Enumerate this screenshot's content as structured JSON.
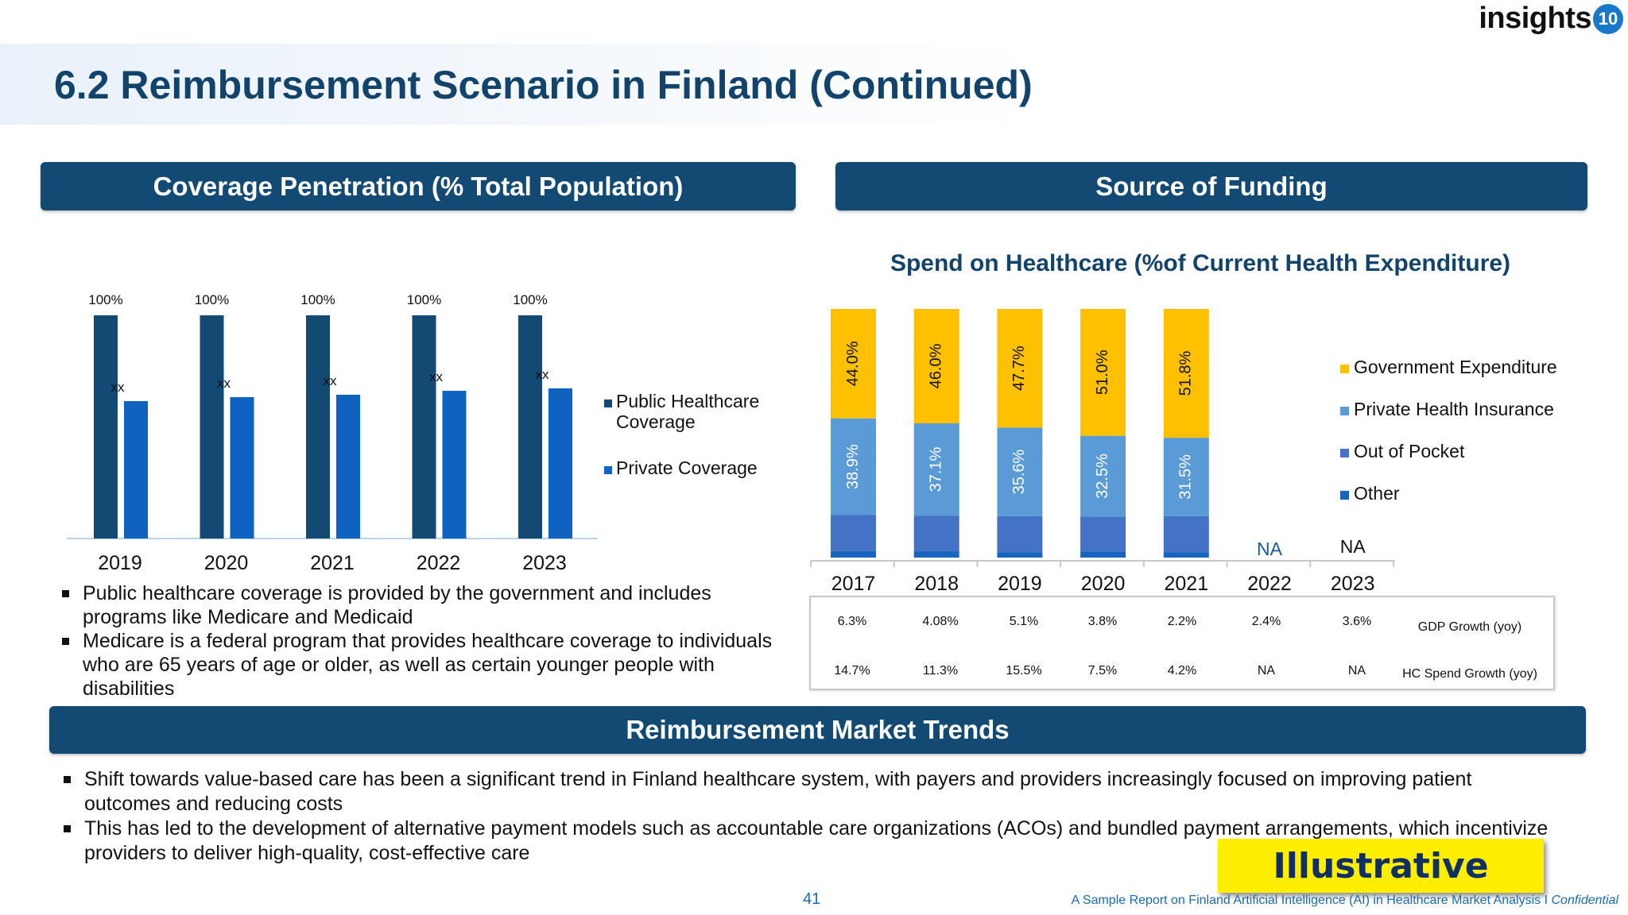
{
  "logo": {
    "text": "insights",
    "badge": "10"
  },
  "page_title": "6.2 Reimbursement Scenario in Finland (Continued)",
  "sections": {
    "coverage": "Coverage Penetration (% Total Population)",
    "funding": "Source of Funding",
    "trends": "Reimbursement Market Trends"
  },
  "colors": {
    "public": "#124a74",
    "private": "#0f63c0",
    "gov": "#ffc000",
    "phi": "#5b9bd5",
    "oop": "#4472c4",
    "other": "#1565c0",
    "banner": "#124a74"
  },
  "chart_data": [
    {
      "type": "bar",
      "categories": [
        "2019",
        "2020",
        "2021",
        "2022",
        "2023"
      ],
      "series": [
        {
          "name": "Public Healthcare Coverage",
          "values": [
            100,
            100,
            100,
            100,
            100
          ],
          "labels": [
            "100%",
            "100%",
            "100%",
            "100%",
            "100%"
          ]
        },
        {
          "name": "Private Coverage",
          "values": [
            null,
            null,
            null,
            null,
            null
          ],
          "labels": [
            "xx",
            "xx",
            "xx",
            "xx",
            "xx"
          ]
        }
      ],
      "title": "",
      "ylim": [
        0,
        100
      ],
      "legend": "right",
      "grid": false
    },
    {
      "type": "bar",
      "stacked": true,
      "title": "Spend on Healthcare (%of Current Health Expenditure)",
      "categories": [
        "2017",
        "2018",
        "2019",
        "2020",
        "2021",
        "2022",
        "2023"
      ],
      "series": [
        {
          "name": "Government Expenditure",
          "values": [
            44.0,
            46.0,
            47.7,
            51.0,
            51.8,
            null,
            null
          ],
          "labels": [
            "44.0%",
            "46.0%",
            "47.7%",
            "51.0%",
            "51.8%",
            "",
            ""
          ]
        },
        {
          "name": "Private Health Insurance",
          "values": [
            38.9,
            37.1,
            35.6,
            32.5,
            31.5,
            null,
            null
          ],
          "labels": [
            "38.9%",
            "37.1%",
            "35.6%",
            "32.5%",
            "31.5%",
            "",
            ""
          ]
        },
        {
          "name": "Out of Pocket",
          "values": [
            14.5,
            14.5,
            14.5,
            14.0,
            14.5,
            null,
            null
          ]
        },
        {
          "name": "Other",
          "values": [
            2.6,
            2.4,
            2.2,
            2.5,
            2.2,
            null,
            null
          ]
        }
      ],
      "na_labels": [
        "",
        "",
        "",
        "",
        "",
        "NA",
        "NA"
      ],
      "legend": "right",
      "grid": false
    }
  ],
  "left_bullets": [
    "Public healthcare coverage is provided by the government and includes programs like Medicare and Medicaid",
    "Medicare is a federal program that provides healthcare coverage to individuals who are 65 years of age or older, as well as certain younger people with disabilities"
  ],
  "growth_table": {
    "rows": [
      {
        "label": "GDP Growth (yoy)",
        "values": [
          "6.3%",
          "4.08%",
          "5.1%",
          "3.8%",
          "2.2%",
          "2.4%",
          "3.6%"
        ]
      },
      {
        "label": "HC Spend Growth (yoy)",
        "values": [
          "14.7%",
          "11.3%",
          "15.5%",
          "7.5%",
          "4.2%",
          "NA",
          "NA"
        ]
      }
    ]
  },
  "trend_bullets": [
    "Shift towards value-based care has been a significant trend in Finland healthcare system, with payers and providers increasingly focused on improving patient outcomes and reducing costs",
    "This has led to the development of alternative payment models such as accountable care organizations (ACOs) and bundled payment arrangements, which incentivize providers to deliver high-quality, cost-effective care"
  ],
  "stamp": "Illustrative",
  "page_number": "41",
  "footer": {
    "text": "A Sample Report on Finland Artificial Intelligence (AI) in Healthcare Market Analysis I ",
    "confidential": "Confidential"
  }
}
